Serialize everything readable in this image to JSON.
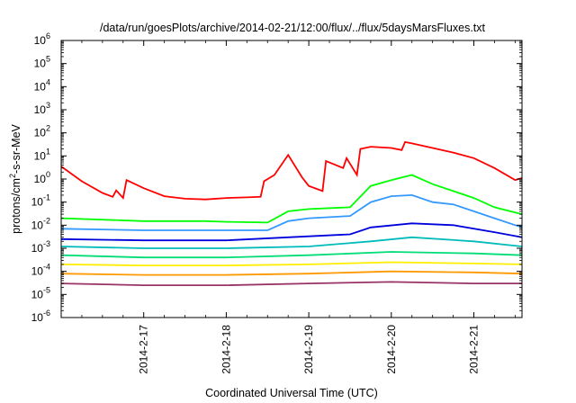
{
  "chart_data": {
    "type": "line",
    "title": "/data/run/goesPlots/archive/2014-02-21/12:00/flux/../flux/5daysMarsFluxes.txt",
    "xlabel": "Coordinated Universal Time (UTC)",
    "ylabel": "protons/cm²-s-sr-MeV",
    "ylabel_parts": {
      "pre": "protons/cm",
      "sup": "2",
      "post": "-s-sr-MeV"
    },
    "x_scale": "time",
    "y_scale": "log",
    "xlim": [
      "2014-02-16 00:00",
      "2014-02-21 14:00"
    ],
    "ylim": [
      1e-06,
      1000000.0
    ],
    "y_ticks": [
      {
        "value": 1e-06,
        "base": "10",
        "exp": "-6"
      },
      {
        "value": 1e-05,
        "base": "10",
        "exp": "-5"
      },
      {
        "value": 0.0001,
        "base": "10",
        "exp": "-4"
      },
      {
        "value": 0.001,
        "base": "10",
        "exp": "-3"
      },
      {
        "value": 0.01,
        "base": "10",
        "exp": "-2"
      },
      {
        "value": 0.1,
        "base": "10",
        "exp": "-1"
      },
      {
        "value": 1,
        "base": "10",
        "exp": "0"
      },
      {
        "value": 10,
        "base": "10",
        "exp": "1"
      },
      {
        "value": 100,
        "base": "10",
        "exp": "2"
      },
      {
        "value": 1000,
        "base": "10",
        "exp": "3"
      },
      {
        "value": 10000,
        "base": "10",
        "exp": "4"
      },
      {
        "value": 100000,
        "base": "10",
        "exp": "5"
      },
      {
        "value": 1000000,
        "base": "10",
        "exp": "6"
      }
    ],
    "x_ticks": [
      {
        "date": "2014-02-17",
        "label": "2014-2-17"
      },
      {
        "date": "2014-02-18",
        "label": "2014-2-18"
      },
      {
        "date": "2014-02-19",
        "label": "2014-2-19"
      },
      {
        "date": "2014-02-20",
        "label": "2014-2-20"
      },
      {
        "date": "2014-02-21",
        "label": "2014-2-21"
      }
    ],
    "grid": false,
    "legend": "none",
    "series": [
      {
        "color": "#ff0000",
        "points": [
          [
            "2014-02-16 00:00",
            3.5
          ],
          [
            "2014-02-16 06:00",
            0.8
          ],
          [
            "2014-02-16 12:00",
            0.25
          ],
          [
            "2014-02-16 15:00",
            0.17
          ],
          [
            "2014-02-16 16:00",
            0.32
          ],
          [
            "2014-02-16 18:00",
            0.15
          ],
          [
            "2014-02-16 19:00",
            0.9
          ],
          [
            "2014-02-17 00:00",
            0.4
          ],
          [
            "2014-02-17 06:00",
            0.18
          ],
          [
            "2014-02-17 12:00",
            0.14
          ],
          [
            "2014-02-17 18:00",
            0.13
          ],
          [
            "2014-02-18 00:00",
            0.15
          ],
          [
            "2014-02-18 06:00",
            0.16
          ],
          [
            "2014-02-18 10:00",
            0.17
          ],
          [
            "2014-02-18 11:00",
            0.8
          ],
          [
            "2014-02-18 14:00",
            1.5
          ],
          [
            "2014-02-18 18:00",
            11
          ],
          [
            "2014-02-18 22:00",
            1.2
          ],
          [
            "2014-02-19 00:00",
            0.5
          ],
          [
            "2014-02-19 04:00",
            0.3
          ],
          [
            "2014-02-19 05:00",
            6
          ],
          [
            "2014-02-19 10:00",
            3
          ],
          [
            "2014-02-19 11:00",
            8
          ],
          [
            "2014-02-19 14:00",
            1.5
          ],
          [
            "2014-02-19 15:00",
            20
          ],
          [
            "2014-02-19 18:00",
            25
          ],
          [
            "2014-02-20 00:00",
            22
          ],
          [
            "2014-02-20 03:00",
            18
          ],
          [
            "2014-02-20 04:00",
            40
          ],
          [
            "2014-02-20 06:00",
            35
          ],
          [
            "2014-02-20 12:00",
            22
          ],
          [
            "2014-02-20 18:00",
            14
          ],
          [
            "2014-02-21 00:00",
            8
          ],
          [
            "2014-02-21 06:00",
            3
          ],
          [
            "2014-02-21 12:00",
            0.9
          ],
          [
            "2014-02-21 14:00",
            1.1
          ]
        ]
      },
      {
        "color": "#00ff00",
        "points": [
          [
            "2014-02-16 00:00",
            0.02
          ],
          [
            "2014-02-17 00:00",
            0.015
          ],
          [
            "2014-02-17 18:00",
            0.015
          ],
          [
            "2014-02-18 00:00",
            0.014
          ],
          [
            "2014-02-18 12:00",
            0.013
          ],
          [
            "2014-02-18 18:00",
            0.04
          ],
          [
            "2014-02-19 00:00",
            0.05
          ],
          [
            "2014-02-19 12:00",
            0.06
          ],
          [
            "2014-02-19 18:00",
            0.5
          ],
          [
            "2014-02-20 00:00",
            0.9
          ],
          [
            "2014-02-20 06:00",
            1.5
          ],
          [
            "2014-02-20 12:00",
            0.6
          ],
          [
            "2014-02-20 18:00",
            0.3
          ],
          [
            "2014-02-21 00:00",
            0.15
          ],
          [
            "2014-02-21 06:00",
            0.06
          ],
          [
            "2014-02-21 14:00",
            0.03
          ]
        ]
      },
      {
        "color": "#3399ff",
        "points": [
          [
            "2014-02-16 00:00",
            0.007
          ],
          [
            "2014-02-17 00:00",
            0.006
          ],
          [
            "2014-02-17 18:00",
            0.006
          ],
          [
            "2014-02-18 00:00",
            0.006
          ],
          [
            "2014-02-18 12:00",
            0.006
          ],
          [
            "2014-02-18 18:00",
            0.015
          ],
          [
            "2014-02-19 00:00",
            0.02
          ],
          [
            "2014-02-19 12:00",
            0.025
          ],
          [
            "2014-02-19 18:00",
            0.1
          ],
          [
            "2014-02-20 00:00",
            0.18
          ],
          [
            "2014-02-20 06:00",
            0.2
          ],
          [
            "2014-02-20 12:00",
            0.1
          ],
          [
            "2014-02-20 18:00",
            0.08
          ],
          [
            "2014-02-21 00:00",
            0.04
          ],
          [
            "2014-02-21 06:00",
            0.02
          ],
          [
            "2014-02-21 14:00",
            0.008
          ]
        ]
      },
      {
        "color": "#0000dd",
        "points": [
          [
            "2014-02-16 00:00",
            0.0025
          ],
          [
            "2014-02-17 00:00",
            0.0022
          ],
          [
            "2014-02-18 00:00",
            0.0022
          ],
          [
            "2014-02-18 18:00",
            0.003
          ],
          [
            "2014-02-19 12:00",
            0.004
          ],
          [
            "2014-02-19 18:00",
            0.008
          ],
          [
            "2014-02-20 06:00",
            0.012
          ],
          [
            "2014-02-20 18:00",
            0.01
          ],
          [
            "2014-02-21 06:00",
            0.005
          ],
          [
            "2014-02-21 14:00",
            0.003
          ]
        ]
      },
      {
        "color": "#00bbbb",
        "points": [
          [
            "2014-02-16 00:00",
            0.0012
          ],
          [
            "2014-02-17 00:00",
            0.001
          ],
          [
            "2014-02-18 00:00",
            0.001
          ],
          [
            "2014-02-19 00:00",
            0.0012
          ],
          [
            "2014-02-19 18:00",
            0.002
          ],
          [
            "2014-02-20 06:00",
            0.003
          ],
          [
            "2014-02-21 00:00",
            0.002
          ],
          [
            "2014-02-21 14:00",
            0.0012
          ]
        ]
      },
      {
        "color": "#00dd77",
        "points": [
          [
            "2014-02-16 00:00",
            0.0005
          ],
          [
            "2014-02-17 00:00",
            0.0004
          ],
          [
            "2014-02-18 00:00",
            0.0004
          ],
          [
            "2014-02-19 00:00",
            0.0005
          ],
          [
            "2014-02-20 00:00",
            0.0007
          ],
          [
            "2014-02-21 00:00",
            0.0006
          ],
          [
            "2014-02-21 14:00",
            0.0005
          ]
        ]
      },
      {
        "color": "#ffee00",
        "points": [
          [
            "2014-02-16 00:00",
            0.0002
          ],
          [
            "2014-02-17 00:00",
            0.00018
          ],
          [
            "2014-02-18 00:00",
            0.00018
          ],
          [
            "2014-02-19 00:00",
            0.0002
          ],
          [
            "2014-02-20 00:00",
            0.00025
          ],
          [
            "2014-02-21 00:00",
            0.00022
          ],
          [
            "2014-02-21 14:00",
            0.0002
          ]
        ]
      },
      {
        "color": "#ff9900",
        "points": [
          [
            "2014-02-16 00:00",
            8e-05
          ],
          [
            "2014-02-17 00:00",
            7e-05
          ],
          [
            "2014-02-18 00:00",
            7e-05
          ],
          [
            "2014-02-19 00:00",
            8e-05
          ],
          [
            "2014-02-20 00:00",
            0.0001
          ],
          [
            "2014-02-21 00:00",
            9e-05
          ],
          [
            "2014-02-21 14:00",
            8e-05
          ]
        ]
      },
      {
        "color": "#993366",
        "points": [
          [
            "2014-02-16 00:00",
            3e-05
          ],
          [
            "2014-02-17 00:00",
            2.5e-05
          ],
          [
            "2014-02-18 00:00",
            2.5e-05
          ],
          [
            "2014-02-19 00:00",
            3e-05
          ],
          [
            "2014-02-20 00:00",
            3.5e-05
          ],
          [
            "2014-02-21 00:00",
            3e-05
          ],
          [
            "2014-02-21 14:00",
            3e-05
          ]
        ]
      }
    ]
  }
}
